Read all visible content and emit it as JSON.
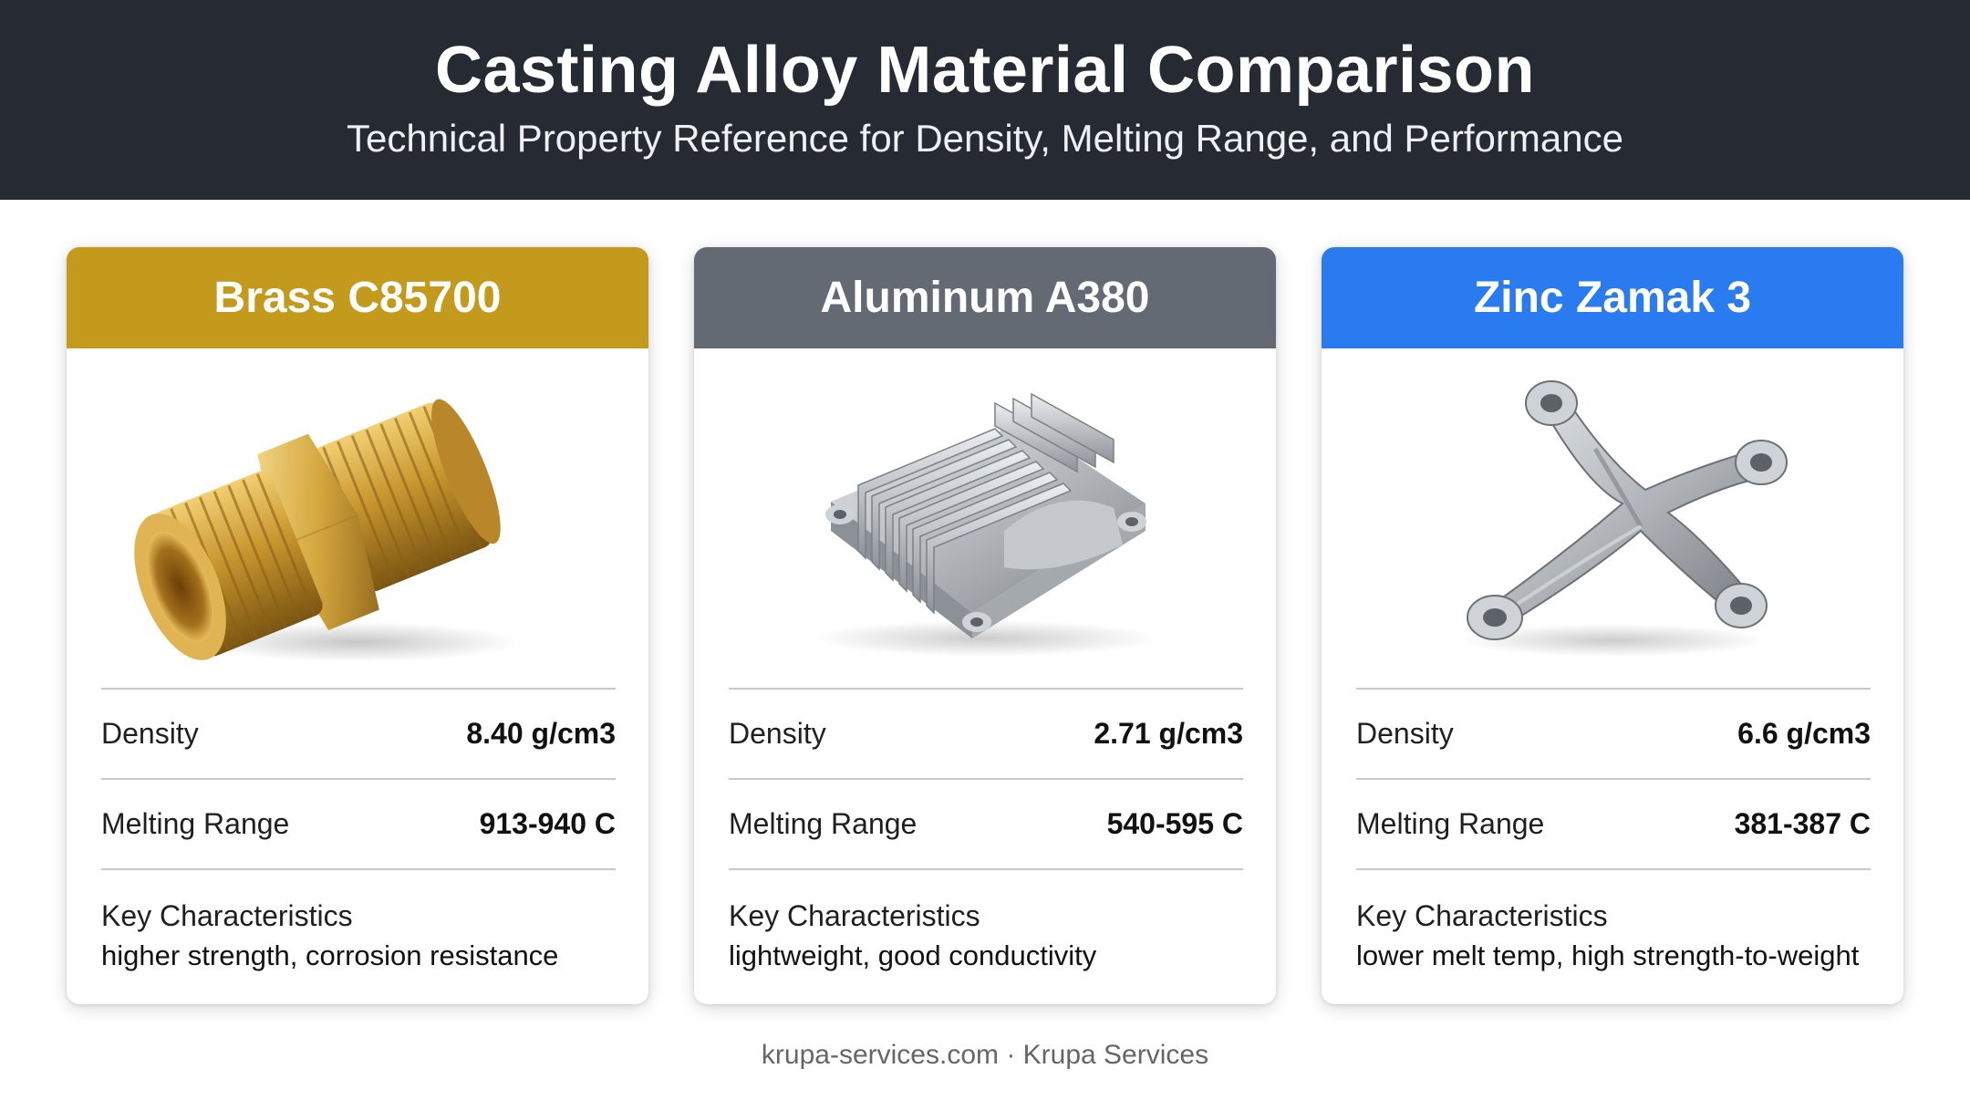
{
  "header": {
    "title": "Casting Alloy Material Comparison",
    "subtitle": "Technical Property Reference for Density, Melting Range, and Performance"
  },
  "cards": [
    {
      "name": "Brass C85700",
      "header_color": "#c39a1c",
      "icon": "brass-pipe-fitting-image",
      "density_label": "Density",
      "density_value": "8.40 g/cm3",
      "melting_label": "Melting Range",
      "melting_value": "913-940 C",
      "key_label": "Key Characteristics",
      "key_text": "higher strength, corrosion resistance"
    },
    {
      "name": "Aluminum A380",
      "header_color": "#636a74",
      "icon": "aluminum-finned-housing-image",
      "density_label": "Density",
      "density_value": "2.71 g/cm3",
      "melting_label": "Melting Range",
      "melting_value": "540-595 C",
      "key_label": "Key Characteristics",
      "key_text": "lightweight, good conductivity"
    },
    {
      "name": "Zinc Zamak 3",
      "header_color": "#2a7bf0",
      "icon": "zinc-bracket-image",
      "density_label": "Density",
      "density_value": "6.6 g/cm3",
      "melting_label": "Melting Range",
      "melting_value": "381-387 C",
      "key_label": "Key Characteristics",
      "key_text": "lower melt temp, high strength-to-weight"
    }
  ],
  "footer": {
    "text": "krupa-services.com · Krupa Services"
  }
}
